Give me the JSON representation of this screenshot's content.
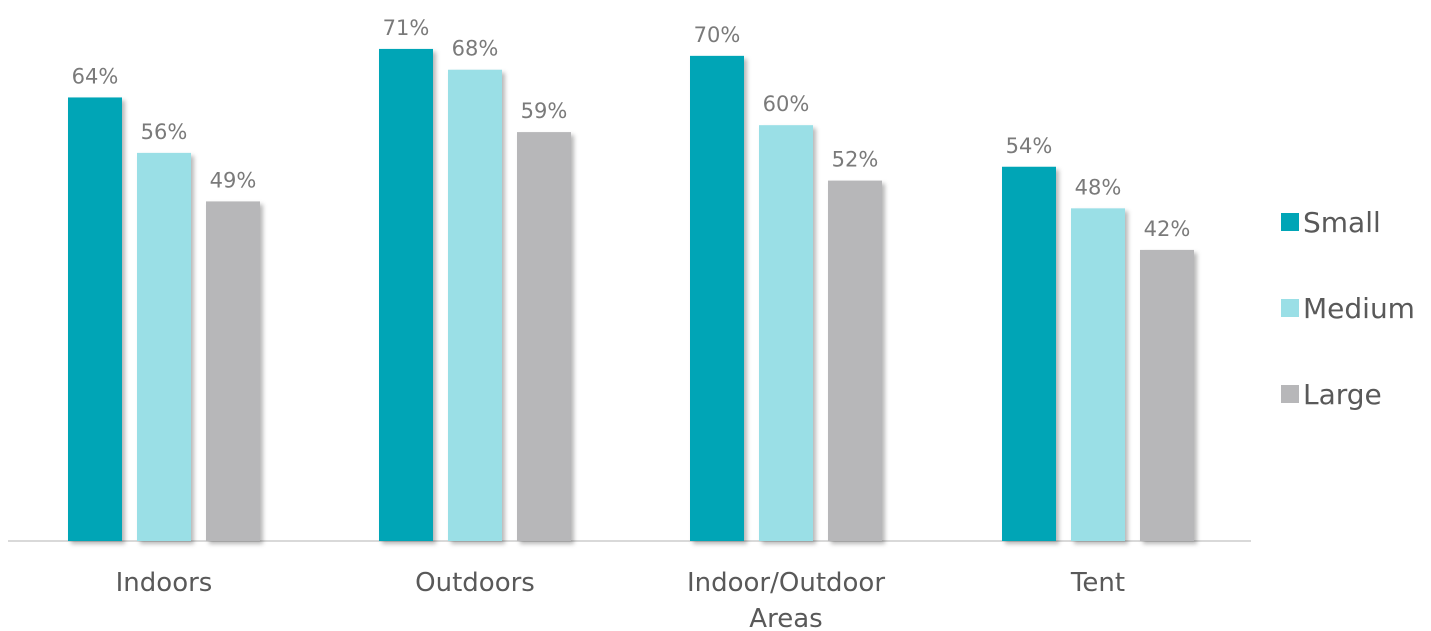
{
  "chart_data": {
    "type": "bar",
    "title": "",
    "xlabel": "",
    "ylabel": "",
    "categories": [
      [
        "Indoors"
      ],
      [
        "Outdoors"
      ],
      [
        "Indoor/Outdoor",
        "Areas"
      ],
      [
        "Tent"
      ]
    ],
    "series": [
      {
        "name": "Small",
        "color": "#00a5b6",
        "values": [
          64,
          71,
          70,
          54
        ]
      },
      {
        "name": "Medium",
        "color": "#9adfe6",
        "values": [
          56,
          68,
          60,
          48
        ]
      },
      {
        "name": "Large",
        "color": "#b7b7b9",
        "values": [
          49,
          59,
          52,
          42
        ]
      }
    ],
    "value_suffix": "%",
    "ylim": [
      0,
      72
    ],
    "grid": false,
    "legend_position": "right",
    "axis_line_color": "#d9d9d9",
    "label_color": "#7a7a7a",
    "text_color": "#595959"
  }
}
